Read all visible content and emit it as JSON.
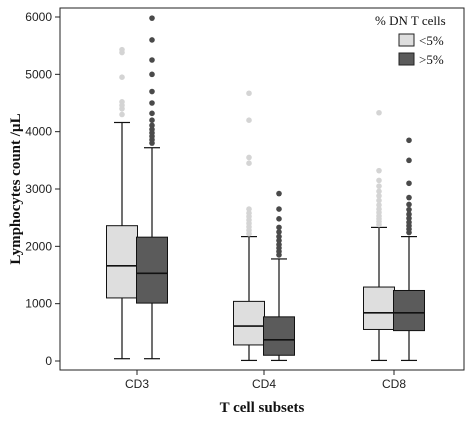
{
  "chart_data": {
    "type": "box",
    "xlabel": "T cell subsets",
    "ylabel": "Lymphocytes count /µL",
    "ylim": [
      -150,
      6050
    ],
    "yticks": [
      0,
      1000,
      2000,
      3000,
      4000,
      5000,
      6000
    ],
    "categories": [
      "CD3",
      "CD4",
      "CD8"
    ],
    "legend": {
      "title": "% DN T cells",
      "placement": "top-right"
    },
    "series": [
      {
        "name": "<5%",
        "color": "#dedede",
        "outlier_color": "#d4d4d4",
        "boxes": [
          {
            "whisker_low": 40,
            "q1": 1100,
            "median": 1660,
            "q3": 2360,
            "whisker_high": 4160,
            "outliers": [
              4300,
              4400,
              4460,
              4520,
              4950,
              5380,
              5430
            ]
          },
          {
            "whisker_low": 10,
            "q1": 280,
            "median": 610,
            "q3": 1040,
            "whisker_high": 2170,
            "outliers": [
              2220,
              2280,
              2340,
              2400,
              2460,
              2520,
              2580,
              2650,
              3450,
              3550,
              4200,
              4670
            ]
          },
          {
            "whisker_low": 10,
            "q1": 550,
            "median": 840,
            "q3": 1290,
            "whisker_high": 2330,
            "outliers": [
              2380,
              2430,
              2480,
              2530,
              2590,
              2650,
              2720,
              2800,
              2880,
              2960,
              3050,
              3150,
              3320,
              4330
            ]
          }
        ]
      },
      {
        "name": ">5%",
        "color": "#5b5b5b",
        "outlier_color": "#4a4a4a",
        "boxes": [
          {
            "whisker_low": 40,
            "q1": 1010,
            "median": 1530,
            "q3": 2160,
            "whisker_high": 3720,
            "outliers": [
              3800,
              3860,
              3920,
              3980,
              4040,
              4110,
              4200,
              4320,
              4500,
              4700,
              5000,
              5250,
              5600,
              5980
            ]
          },
          {
            "whisker_low": 10,
            "q1": 100,
            "median": 370,
            "q3": 770,
            "whisker_high": 1780,
            "outliers": [
              1850,
              1910,
              1970,
              2030,
              2100,
              2170,
              2250,
              2330,
              2480,
              2650,
              2920
            ]
          },
          {
            "whisker_low": 10,
            "q1": 530,
            "median": 840,
            "q3": 1230,
            "whisker_high": 2170,
            "outliers": [
              2240,
              2300,
              2360,
              2420,
              2490,
              2560,
              2640,
              2730,
              2850,
              3100,
              3500,
              3850
            ]
          }
        ]
      }
    ]
  }
}
